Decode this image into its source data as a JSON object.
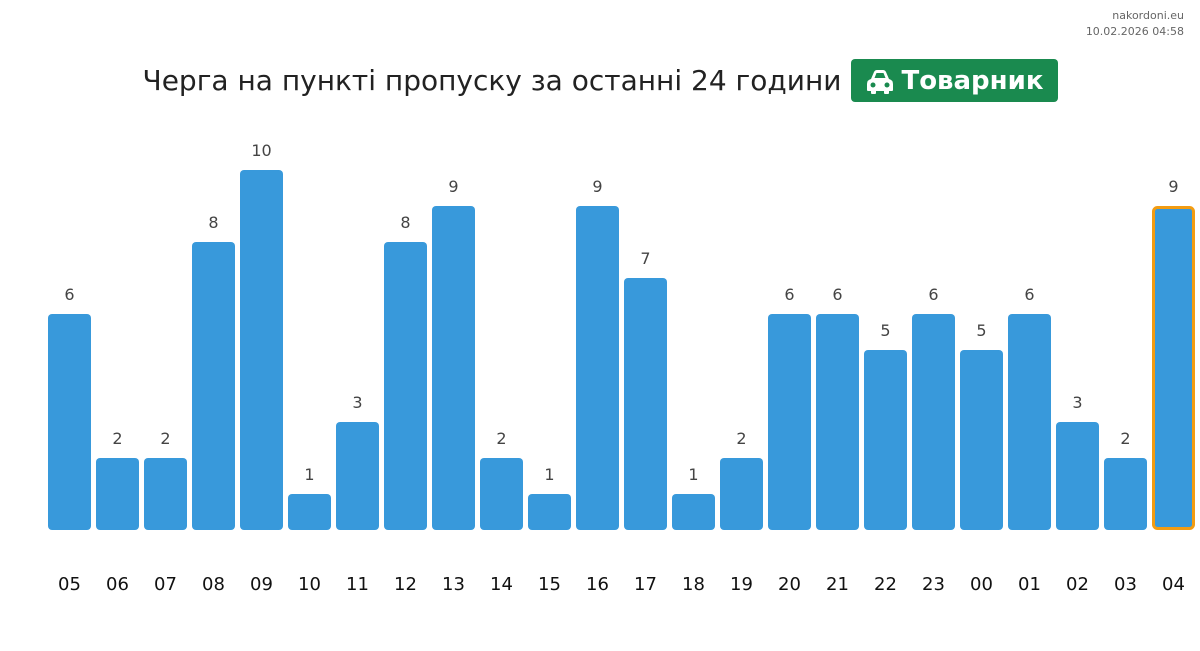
{
  "meta": {
    "site": "nakordoni.eu",
    "timestamp": "10.02.2026 04:58"
  },
  "header": {
    "title": "Черга на пункті пропуску за останні 24 години",
    "badge_label": "Товарник",
    "badge_icon": "car-icon",
    "badge_color": "#1a8a4f"
  },
  "colors": {
    "bar": "#3899db",
    "highlight_border": "#f39c12"
  },
  "chart_data": {
    "type": "bar",
    "title": "Черга на пункті пропуску за останні 24 години",
    "xlabel": "",
    "ylabel": "",
    "ylim": [
      0,
      10
    ],
    "grid": false,
    "categories": [
      "05",
      "06",
      "07",
      "08",
      "09",
      "10",
      "11",
      "12",
      "13",
      "14",
      "15",
      "16",
      "17",
      "18",
      "19",
      "20",
      "21",
      "22",
      "23",
      "00",
      "01",
      "02",
      "03",
      "04"
    ],
    "values": [
      6,
      2,
      2,
      8,
      10,
      1,
      3,
      8,
      9,
      2,
      1,
      9,
      7,
      1,
      2,
      6,
      6,
      5,
      6,
      5,
      6,
      3,
      2,
      9
    ],
    "highlighted_category": "04"
  }
}
